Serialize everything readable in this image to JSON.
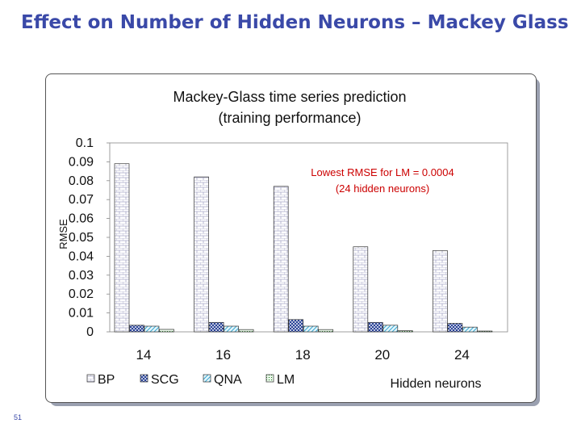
{
  "slide": {
    "title": "Effect on Number of Hidden Neurons – Mackey Glass",
    "number": "51"
  },
  "colors": {
    "title": "#3a49a8",
    "annotation": "#cc0000"
  },
  "chart_data": {
    "type": "bar",
    "title_lines": [
      "Mackey-Glass time series prediction",
      "(training performance)"
    ],
    "xlabel": "Hidden neurons",
    "ylabel": "RMSE",
    "categories": [
      "14",
      "16",
      "18",
      "20",
      "24"
    ],
    "yticks": [
      "0",
      "0.01",
      "0.02",
      "0.03",
      "0.04",
      "0.05",
      "0.06",
      "0.07",
      "0.08",
      "0.09",
      "0.1"
    ],
    "ylim": [
      0,
      0.1
    ],
    "series": [
      {
        "name": "BP",
        "values": [
          0.089,
          0.082,
          0.077,
          0.045,
          0.043
        ],
        "pattern": "brick"
      },
      {
        "name": "SCG",
        "values": [
          0.0035,
          0.005,
          0.0065,
          0.005,
          0.0045
        ],
        "pattern": "cross"
      },
      {
        "name": "QNA",
        "values": [
          0.003,
          0.003,
          0.003,
          0.0035,
          0.0025
        ],
        "pattern": "diag"
      },
      {
        "name": "LM",
        "values": [
          0.0013,
          0.0012,
          0.0012,
          0.0006,
          0.0004
        ],
        "pattern": "dots"
      }
    ],
    "annotation_lines": [
      "Lowest RMSE for LM = 0.0004",
      "(24 hidden neurons)"
    ],
    "legend_position": "bottom",
    "grid": false
  }
}
